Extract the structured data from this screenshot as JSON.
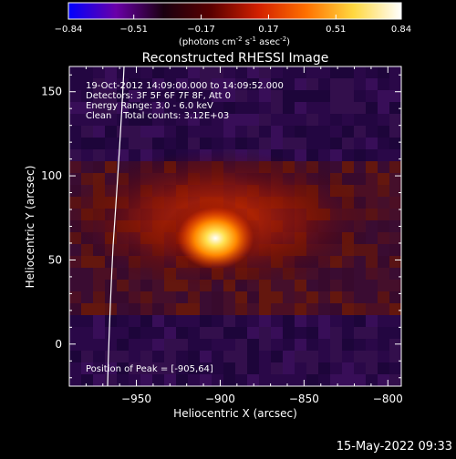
{
  "colorbar": {
    "ticks": [
      "-0.84",
      "-0.51",
      "-0.17",
      "0.17",
      "0.51",
      "0.84"
    ],
    "label": "(photons cm",
    "label_sup1": "-2",
    "label_mid": " s",
    "label_sup2": "-1",
    "label_mid2": " asec",
    "label_sup3": "-2",
    "label_end": ")",
    "colors": [
      "#0000ff",
      "#6a00a8",
      "#1a0010",
      "#5a0000",
      "#d22000",
      "#ff7000",
      "#ffd840",
      "#ffffff"
    ]
  },
  "chart_data": {
    "type": "heatmap",
    "title": "Reconstructed RHESSI Image",
    "xlabel": "Heliocentric X (arcsec)",
    "ylabel": "Heliocentric Y (arcsec)",
    "xlim": [
      -990,
      -792
    ],
    "ylim": [
      -25,
      165
    ],
    "x_ticks": [
      -950,
      -900,
      -850,
      -800
    ],
    "y_ticks": [
      0,
      50,
      100,
      150
    ],
    "x_tick_labels": [
      "−950",
      "−900",
      "−850",
      "−800"
    ],
    "y_tick_labels": [
      "0",
      "50",
      "100",
      "150"
    ],
    "peak": {
      "x": -905,
      "y": 64,
      "value": 0.84
    },
    "colorbar_range": [
      -0.84,
      0.84
    ],
    "annotations": [
      "19-Oct-2012 14:09:00.000 to 14:09:52.000",
      "Detectors: 3F 5F 6F 7F 8F, Att 0",
      "Energy Range: 3.0 - 6.0 keV",
      "Clean    Total counts: 3.12E+03"
    ],
    "peak_label": "Position of Peak = [-905,64]"
  },
  "timestamp": "15-May-2022 09:33"
}
